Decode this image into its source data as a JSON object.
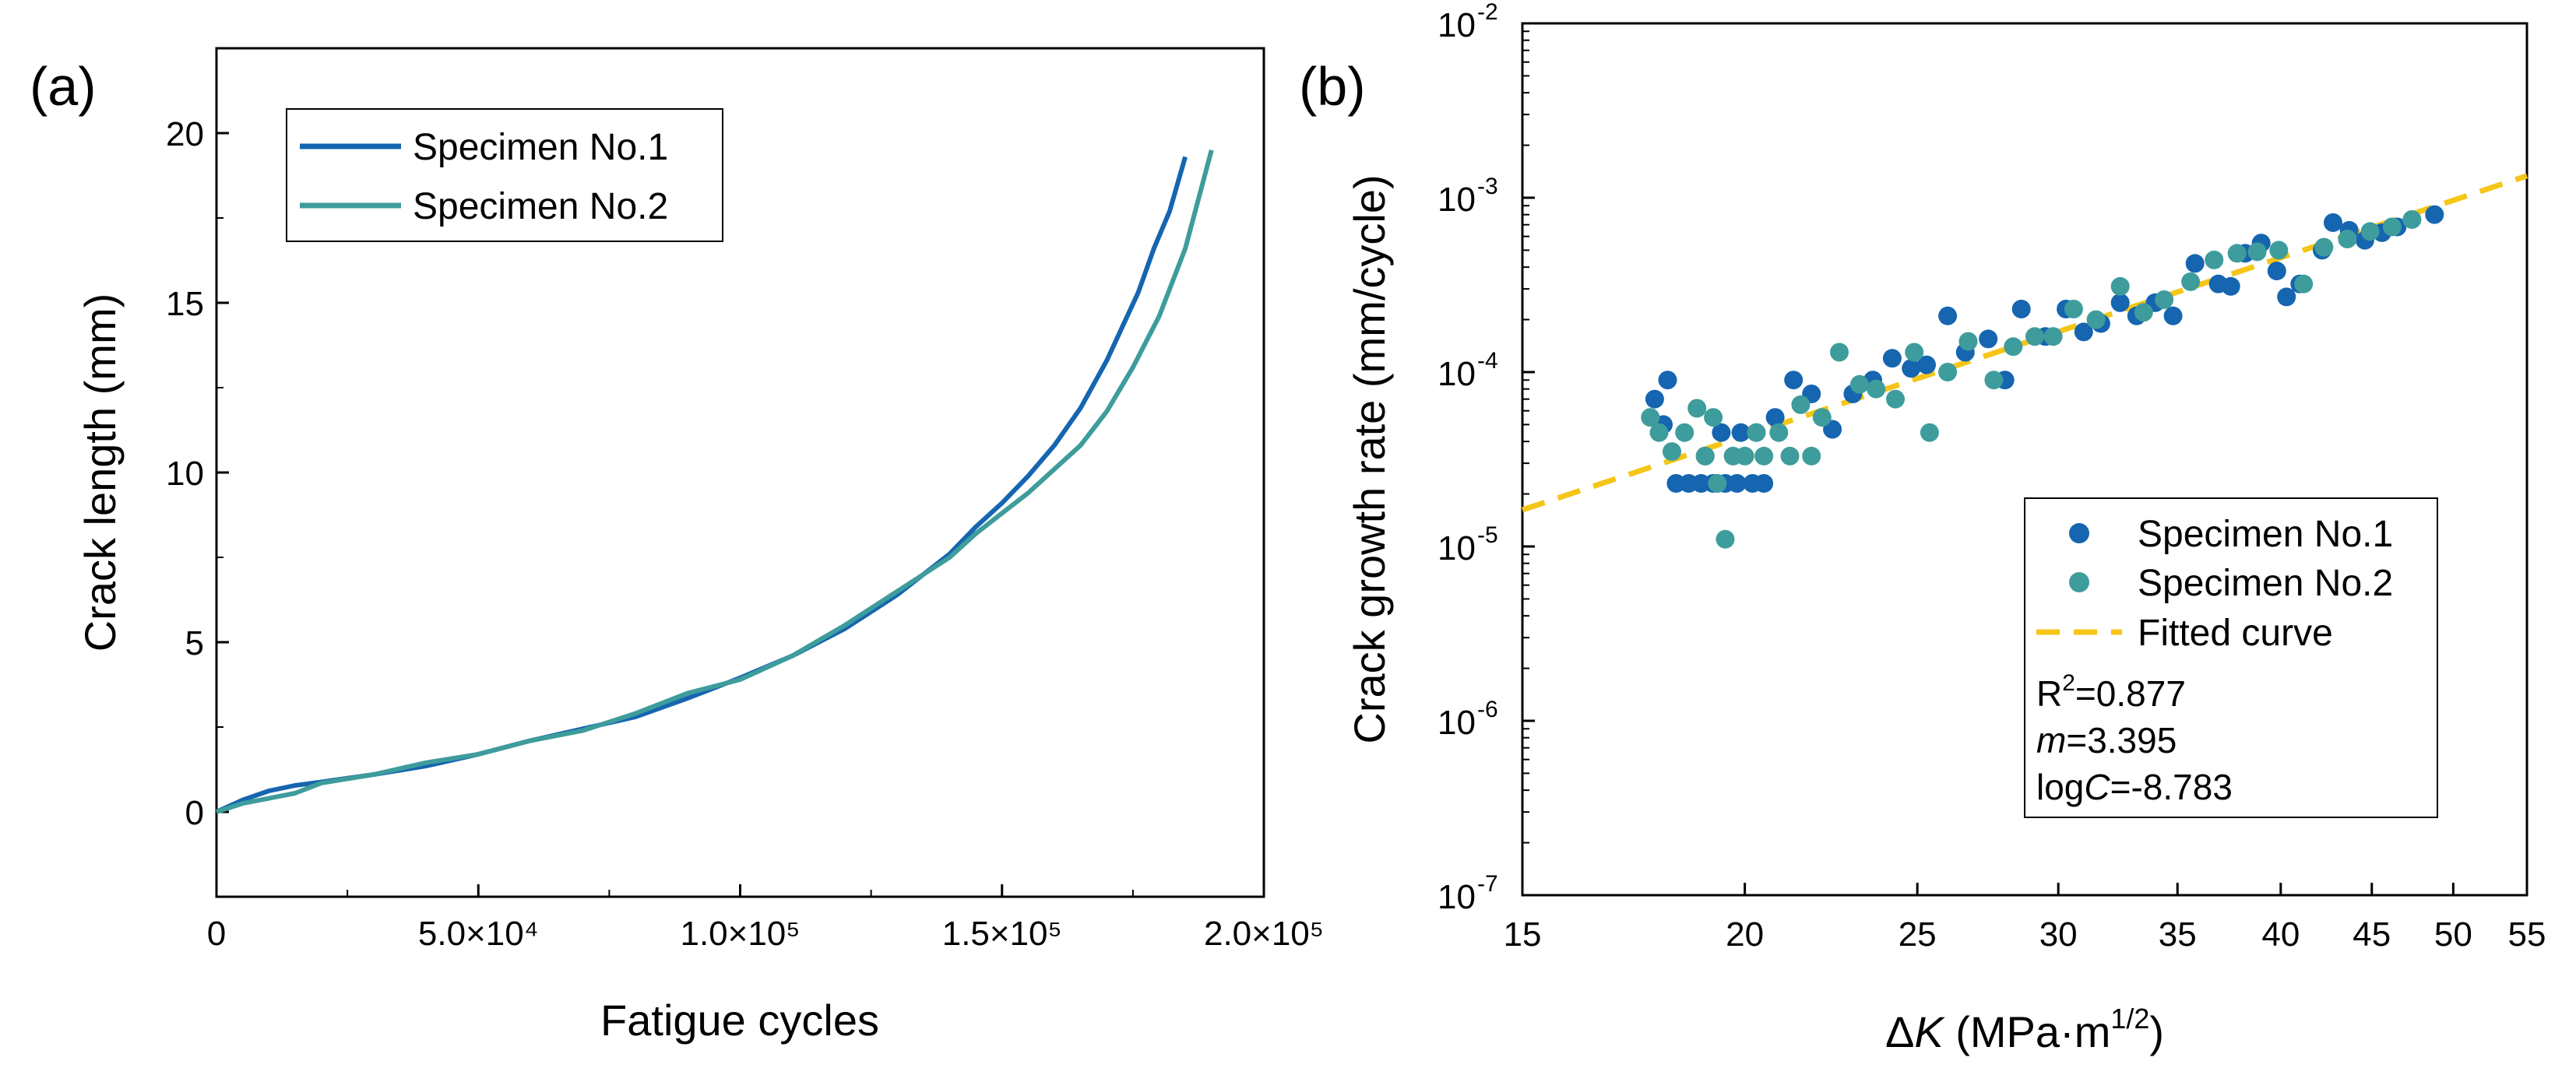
{
  "colors": {
    "spec1": "#1565b0",
    "spec2": "#3e9c9c",
    "fit": "#f5c518",
    "axis": "#000000"
  },
  "chart_data": [
    {
      "type": "line",
      "panel_label": "(a)",
      "xlabel": "Fatigue cycles",
      "ylabel": "Crack length (mm)",
      "xlim": [
        0,
        200000
      ],
      "ylim": [
        -2.5,
        22.5
      ],
      "x_ticks": [
        {
          "value": 0,
          "label": "0"
        },
        {
          "value": 50000,
          "label": "5.0×10⁴"
        },
        {
          "value": 100000,
          "label": "1.0×10⁵"
        },
        {
          "value": 150000,
          "label": "1.5×10⁵"
        },
        {
          "value": 200000,
          "label": "2.0×10⁵"
        }
      ],
      "y_ticks": [
        {
          "value": 0,
          "label": "0"
        },
        {
          "value": 5,
          "label": "5"
        },
        {
          "value": 10,
          "label": "10"
        },
        {
          "value": 15,
          "label": "15"
        },
        {
          "value": 20,
          "label": "20"
        }
      ],
      "legend_position": "top-left",
      "series": [
        {
          "name": "Specimen No.1",
          "color": "#1565b0",
          "points": [
            [
              0,
              0
            ],
            [
              5000,
              0.35
            ],
            [
              10000,
              0.62
            ],
            [
              15000,
              0.78
            ],
            [
              20000,
              0.88
            ],
            [
              30000,
              1.1
            ],
            [
              40000,
              1.35
            ],
            [
              50000,
              1.7
            ],
            [
              60000,
              2.1
            ],
            [
              70000,
              2.45
            ],
            [
              80000,
              2.8
            ],
            [
              90000,
              3.35
            ],
            [
              100000,
              3.95
            ],
            [
              110000,
              4.6
            ],
            [
              120000,
              5.4
            ],
            [
              130000,
              6.4
            ],
            [
              140000,
              7.6
            ],
            [
              145000,
              8.4
            ],
            [
              150000,
              9.1
            ],
            [
              155000,
              9.9
            ],
            [
              160000,
              10.8
            ],
            [
              165000,
              11.9
            ],
            [
              170000,
              13.3
            ],
            [
              173000,
              14.3
            ],
            [
              176000,
              15.3
            ],
            [
              179000,
              16.6
            ],
            [
              182000,
              17.7
            ],
            [
              185000,
              19.3
            ]
          ]
        },
        {
          "name": "Specimen No.2",
          "color": "#3e9c9c",
          "points": [
            [
              0,
              0
            ],
            [
              5000,
              0.25
            ],
            [
              10000,
              0.4
            ],
            [
              15000,
              0.55
            ],
            [
              20000,
              0.85
            ],
            [
              30000,
              1.1
            ],
            [
              40000,
              1.45
            ],
            [
              50000,
              1.7
            ],
            [
              60000,
              2.1
            ],
            [
              70000,
              2.4
            ],
            [
              80000,
              2.9
            ],
            [
              90000,
              3.5
            ],
            [
              100000,
              3.9
            ],
            [
              110000,
              4.6
            ],
            [
              120000,
              5.5
            ],
            [
              130000,
              6.5
            ],
            [
              140000,
              7.5
            ],
            [
              145000,
              8.2
            ],
            [
              150000,
              8.8
            ],
            [
              155000,
              9.4
            ],
            [
              160000,
              10.1
            ],
            [
              165000,
              10.8
            ],
            [
              170000,
              11.8
            ],
            [
              175000,
              13.1
            ],
            [
              180000,
              14.6
            ],
            [
              185000,
              16.6
            ],
            [
              190000,
              19.5
            ]
          ]
        }
      ]
    },
    {
      "type": "scatter",
      "panel_label": "(b)",
      "xlabel_prefix": "Δ",
      "xlabel_var": "K",
      "xlabel_unit": " (MPa·m",
      "xlabel_sup": "1/2",
      "xlabel_close": ")",
      "ylabel": "Crack growth rate (mm/cycle)",
      "xscale": "log",
      "yscale": "log",
      "xlim": [
        15,
        55
      ],
      "ylim": [
        1e-07,
        0.01
      ],
      "x_ticks": [
        {
          "value": 15,
          "label": "15"
        },
        {
          "value": 20,
          "label": "20"
        },
        {
          "value": 25,
          "label": "25"
        },
        {
          "value": 30,
          "label": "30"
        },
        {
          "value": 35,
          "label": "35"
        },
        {
          "value": 40,
          "label": "40"
        },
        {
          "value": 45,
          "label": "45"
        },
        {
          "value": 50,
          "label": "50"
        },
        {
          "value": 55,
          "label": "55"
        }
      ],
      "y_ticks": [
        {
          "exp": -7,
          "base": "10",
          "sup": "-7"
        },
        {
          "exp": -6,
          "base": "10",
          "sup": "-6"
        },
        {
          "exp": -5,
          "base": "10",
          "sup": "-5"
        },
        {
          "exp": -4,
          "base": "10",
          "sup": "-4"
        },
        {
          "exp": -3,
          "base": "10",
          "sup": "-3"
        },
        {
          "exp": -2,
          "base": "10",
          "sup": "-2"
        }
      ],
      "legend_position": "bottom-right",
      "series": [
        {
          "name": "Specimen No.1",
          "color": "#1565b0",
          "points": [
            [
              17.8,
              7e-05
            ],
            [
              18.1,
              9e-05
            ],
            [
              18.0,
              5e-05
            ],
            [
              18.3,
              2.3e-05
            ],
            [
              18.6,
              2.3e-05
            ],
            [
              18.9,
              2.3e-05
            ],
            [
              19.2,
              2.3e-05
            ],
            [
              19.5,
              2.3e-05
            ],
            [
              19.8,
              2.3e-05
            ],
            [
              20.2,
              2.3e-05
            ],
            [
              20.5,
              2.3e-05
            ],
            [
              19.0,
              3.3e-05
            ],
            [
              19.4,
              4.5e-05
            ],
            [
              19.9,
              4.5e-05
            ],
            [
              20.3,
              4.5e-05
            ],
            [
              20.8,
              5.5e-05
            ],
            [
              21.3,
              9e-05
            ],
            [
              21.8,
              7.5e-05
            ],
            [
              22.4,
              4.7e-05
            ],
            [
              23.0,
              7.5e-05
            ],
            [
              23.6,
              9e-05
            ],
            [
              24.2,
              0.00012
            ],
            [
              24.8,
              0.000105
            ],
            [
              25.3,
              0.00011
            ],
            [
              26.0,
              0.00021
            ],
            [
              26.6,
              0.00013
            ],
            [
              27.4,
              0.000155
            ],
            [
              28.0,
              9e-05
            ],
            [
              28.6,
              0.00023
            ],
            [
              29.5,
              0.00016
            ],
            [
              30.3,
              0.00023
            ],
            [
              31.0,
              0.00017
            ],
            [
              31.7,
              0.00019
            ],
            [
              32.5,
              0.00025
            ],
            [
              33.2,
              0.00021
            ],
            [
              34.0,
              0.00025
            ],
            [
              34.8,
              0.00021
            ],
            [
              35.8,
              0.00042
            ],
            [
              36.9,
              0.00032
            ],
            [
              37.5,
              0.00031
            ],
            [
              38.2,
              0.00048
            ],
            [
              39.0,
              0.00055
            ],
            [
              39.8,
              0.00038
            ],
            [
              40.3,
              0.00027
            ],
            [
              41.0,
              0.00032
            ],
            [
              42.2,
              0.0005
            ],
            [
              42.8,
              0.00072
            ],
            [
              43.7,
              0.00065
            ],
            [
              44.6,
              0.00057
            ],
            [
              45.6,
              0.00063
            ],
            [
              46.5,
              0.00068
            ],
            [
              48.8,
              0.0008
            ]
          ]
        },
        {
          "name": "Specimen No.2",
          "color": "#3e9c9c",
          "points": [
            [
              17.7,
              5.5e-05
            ],
            [
              17.9,
              4.5e-05
            ],
            [
              18.2,
              3.5e-05
            ],
            [
              18.5,
              4.5e-05
            ],
            [
              18.8,
              6.2e-05
            ],
            [
              19.0,
              3.3e-05
            ],
            [
              19.2,
              5.5e-05
            ],
            [
              19.3,
              2.3e-05
            ],
            [
              19.5,
              1.1e-05
            ],
            [
              19.7,
              3.3e-05
            ],
            [
              20.0,
              3.3e-05
            ],
            [
              20.3,
              4.5e-05
            ],
            [
              20.5,
              3.3e-05
            ],
            [
              20.9,
              4.5e-05
            ],
            [
              21.2,
              3.3e-05
            ],
            [
              21.5,
              6.5e-05
            ],
            [
              21.8,
              3.3e-05
            ],
            [
              22.1,
              5.5e-05
            ],
            [
              22.6,
              0.00013
            ],
            [
              23.2,
              8.5e-05
            ],
            [
              23.7,
              8e-05
            ],
            [
              24.3,
              7e-05
            ],
            [
              24.9,
              0.00013
            ],
            [
              25.4,
              4.5e-05
            ],
            [
              26.0,
              0.0001
            ],
            [
              26.7,
              0.00015
            ],
            [
              27.6,
              9e-05
            ],
            [
              28.3,
              0.00014
            ],
            [
              29.1,
              0.00016
            ],
            [
              29.8,
              0.00016
            ],
            [
              30.6,
              0.00023
            ],
            [
              31.5,
              0.0002
            ],
            [
              32.5,
              0.00031
            ],
            [
              33.5,
              0.00022
            ],
            [
              34.4,
              0.00026
            ],
            [
              35.6,
              0.00033
            ],
            [
              36.7,
              0.00044
            ],
            [
              37.8,
              0.00048
            ],
            [
              38.8,
              0.00049
            ],
            [
              39.9,
              0.0005
            ],
            [
              41.2,
              0.00032
            ],
            [
              42.3,
              0.00052
            ],
            [
              43.6,
              0.00058
            ],
            [
              44.9,
              0.00064
            ],
            [
              46.2,
              0.00068
            ],
            [
              47.4,
              0.00075
            ]
          ]
        }
      ],
      "fitted_curve": {
        "name": "Fitted curve",
        "color": "#f5c518",
        "m": 3.395,
        "logC": -8.783
      },
      "annotations": {
        "r2_base": "R",
        "r2_sup": "2",
        "r2_value": "=0.877",
        "m_var": "m",
        "m_value": "=3.395",
        "logc_prefix": "log",
        "logc_var": "C",
        "logc_value": "=-8.783"
      }
    }
  ]
}
